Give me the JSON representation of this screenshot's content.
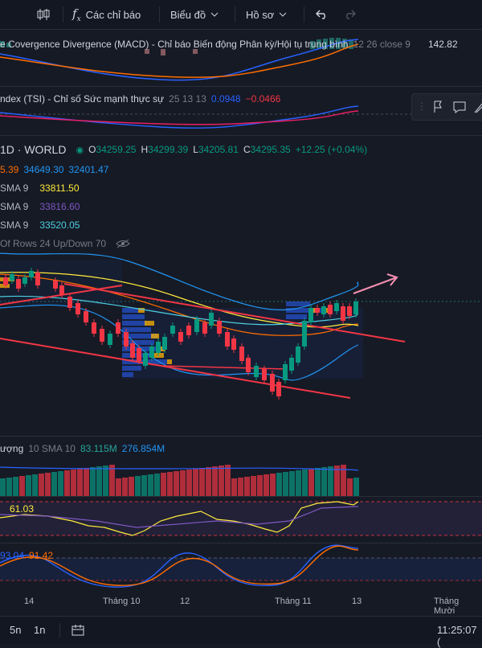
{
  "toolbar": {
    "indicators_label": "Các chỉ báo",
    "chart_label": "Biểu đồ",
    "profile_label": "Hồ sơ"
  },
  "macd": {
    "title": "e Covergence Divergence (MACD) - Chỉ báo Biến động Phân kỳ/Hội tụ trung bình",
    "params": "12 26 close 9",
    "value": "142.82"
  },
  "tsi": {
    "title": "ndex (TSI) - Chỉ số Sức mạnh thực sự",
    "params": "25 13 13",
    "value1": "0.0948",
    "value2": "−0.0466"
  },
  "main": {
    "symbol": "1D · WORLD",
    "o_label": "O",
    "o": "34259.25",
    "h_label": "H",
    "h": "34299.39",
    "l_label": "L",
    "l": "34205.81",
    "c_label": "C",
    "c": "34295.35",
    "change": "+12.25 (+0.04%)",
    "bb": [
      "5.39",
      "34649.30",
      "32401.47"
    ],
    "sma_rows": [
      {
        "label": "SMA 9",
        "value": "33811.50",
        "color": "#ffeb3b"
      },
      {
        "label": "SMA 9",
        "value": "33816.60",
        "color": "#7e57c2"
      },
      {
        "label": "SMA 9",
        "value": "33520.05",
        "color": "#4dd0e1"
      }
    ],
    "vp_label": "Of Rows 24 Up/Down 70"
  },
  "volume": {
    "label": "ượng",
    "sma_label": "10 SMA 10",
    "v1": "83.115M",
    "v2": "276.854M"
  },
  "rsi": {
    "value": "61.03"
  },
  "stoch": {
    "v1": "93.04",
    "v2": "91.42"
  },
  "xaxis": {
    "ticks": [
      "14",
      "Tháng 10",
      "12",
      "Tháng 11",
      "13",
      "Tháng Mười"
    ]
  },
  "bottom": {
    "range1": "5n",
    "range2": "1n",
    "time": "11:25:07 ("
  },
  "colors": {
    "up": "#089981",
    "down": "#f23645",
    "accent": "#2962ff"
  }
}
